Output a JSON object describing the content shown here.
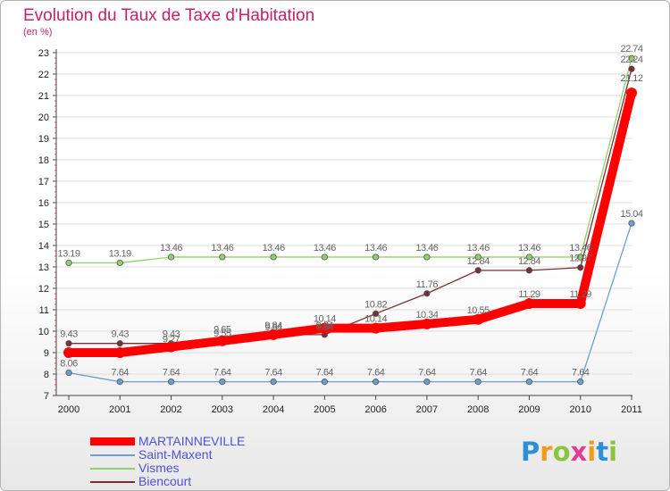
{
  "title": "Evolution du Taux de Taxe d'Habitation",
  "subtitle": "(en %)",
  "logo": {
    "letters": [
      "P",
      "r",
      "o",
      "x",
      "i",
      "t",
      "i"
    ],
    "colors": [
      "#2f8fd6",
      "#f29a1c",
      "#8cc43c",
      "#e23d96",
      "#f29a1c",
      "#2f8fd6",
      "#8cc43c"
    ]
  },
  "chart_data": {
    "type": "line",
    "title": "Evolution du Taux de Taxe d'Habitation",
    "ylabel": "(en %)",
    "xlabel": "",
    "x": [
      "2000",
      "2001",
      "2002",
      "2003",
      "2004",
      "2005",
      "2006",
      "2007",
      "2008",
      "2009",
      "2010",
      "2011"
    ],
    "ylim": [
      7,
      23
    ],
    "yticks": [
      "7",
      "8",
      "9",
      "10",
      "11",
      "12",
      "13",
      "14",
      "15",
      "16",
      "17",
      "18",
      "19",
      "20",
      "21",
      "22",
      "23"
    ],
    "series": [
      {
        "name": "MARTAINNEVILLE",
        "color": "#ff0000",
        "values": [
          9.0,
          9.0,
          9.27,
          9.55,
          9.84,
          10.14,
          10.14,
          10.34,
          10.55,
          11.29,
          11.29,
          21.12
        ],
        "labels": [
          "",
          "",
          "",
          "",
          "",
          "10.14",
          "10.14",
          "10.34",
          "10.55",
          "11.29",
          "11.29",
          "21.12"
        ]
      },
      {
        "name": "Saint-Maxent",
        "color": "#6b9fd2",
        "values": [
          8.06,
          7.64,
          7.64,
          7.64,
          7.64,
          7.64,
          7.64,
          7.64,
          7.64,
          7.64,
          7.64,
          15.04
        ],
        "labels": [
          "8.06",
          "7.64",
          "7.64",
          "7.64",
          "7.64",
          "7.64",
          "7.64",
          "7.64",
          "7.64",
          "7.64",
          "7.64",
          "15.04"
        ]
      },
      {
        "name": "Vismes",
        "color": "#8fd16a",
        "values": [
          13.19,
          13.19,
          13.46,
          13.46,
          13.46,
          13.46,
          13.46,
          13.46,
          13.46,
          13.46,
          13.46,
          22.74
        ],
        "labels": [
          "13.19",
          "13.19",
          "13.46",
          "13.46",
          "13.46",
          "13.46",
          "13.46",
          "13.46",
          "13.46",
          "13.46",
          "13.46",
          "22.74"
        ]
      },
      {
        "name": "Biencourt",
        "color": "#7a2e33",
        "values": [
          9.43,
          9.43,
          9.43,
          9.65,
          9.84,
          9.84,
          10.82,
          11.76,
          12.84,
          12.84,
          12.97,
          22.24
        ],
        "labels": [
          "9.43",
          "9.43",
          "9.43",
          "9.65",
          "9.84",
          "9.84",
          "10.82",
          "11.76",
          "12.84",
          "12.84",
          "12.97",
          "22.24"
        ]
      }
    ],
    "extra_labels": [
      "9.27",
      "9.55",
      "9.84",
      "9.84"
    ],
    "legend_position": "bottom-left"
  }
}
